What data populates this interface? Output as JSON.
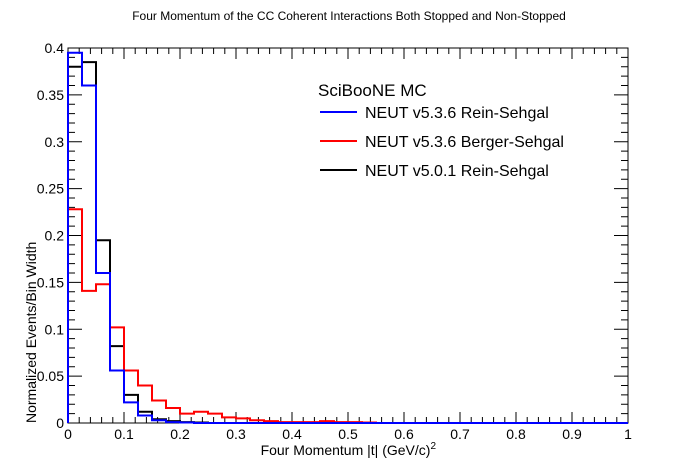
{
  "chart_data": {
    "type": "line",
    "title": "Four Momentum of the CC Coherent Interactions Both Stopped and Non-Stopped",
    "xlabel": "Four Momentum |t| (GeV/c)",
    "xlabel_sup": "2",
    "ylabel": "Normalized Events/Bin Width",
    "xlim": [
      0,
      1
    ],
    "ylim": [
      0,
      0.4
    ],
    "x_ticks": [
      0,
      0.1,
      0.2,
      0.3,
      0.4,
      0.5,
      0.6,
      0.7,
      0.8,
      0.9,
      1
    ],
    "x_tick_labels": [
      "0",
      "0.1",
      "0.2",
      "0.3",
      "0.4",
      "0.5",
      "0.6",
      "0.7",
      "0.8",
      "0.9",
      "1"
    ],
    "y_ticks": [
      0,
      0.05,
      0.1,
      0.15,
      0.2,
      0.25,
      0.3,
      0.35,
      0.4
    ],
    "y_tick_labels": [
      "0",
      "0.05",
      "0.1",
      "0.15",
      "0.2",
      "0.25",
      "0.3",
      "0.35",
      "0.4"
    ],
    "grid": false,
    "legend_position": "top-right",
    "legend_title": "SciBooNE MC",
    "bin_edges": [
      0,
      0.025,
      0.05,
      0.075,
      0.1,
      0.125,
      0.15,
      0.175,
      0.2,
      0.225,
      0.25,
      0.275,
      0.3,
      0.325,
      0.35,
      0.375,
      0.4,
      0.425,
      0.45,
      0.475,
      0.5,
      0.525,
      0.55,
      0.575,
      0.6,
      0.625,
      0.65,
      0.675,
      0.7,
      0.725,
      0.75,
      0.775,
      0.8,
      0.825,
      0.85,
      0.875,
      0.9,
      0.925,
      0.95,
      0.975,
      1
    ],
    "series": [
      {
        "name": "NEUT v5.3.6 Rein-Sehgal",
        "color": "#0000ff",
        "values": [
          0.395,
          0.36,
          0.16,
          0.056,
          0.022,
          0.008,
          0.003,
          0.001,
          0.0005,
          0,
          0,
          0,
          0,
          0,
          0,
          0,
          0,
          0,
          0,
          0,
          0,
          0,
          0,
          0,
          0,
          0,
          0,
          0,
          0,
          0,
          0,
          0,
          0,
          0,
          0,
          0,
          0,
          0,
          0,
          0
        ]
      },
      {
        "name": "NEUT v5.3.6 Berger-Sehgal",
        "color": "#ff0000",
        "values": [
          0.228,
          0.141,
          0.148,
          0.102,
          0.056,
          0.04,
          0.024,
          0.016,
          0.01,
          0.012,
          0.01,
          0.006,
          0.005,
          0.003,
          0.002,
          0.001,
          0.001,
          0.001,
          0.002,
          0.001,
          0.001,
          0.0005,
          0,
          0,
          0,
          0,
          0,
          0,
          0,
          0,
          0,
          0,
          0,
          0,
          0,
          0,
          0,
          0,
          0,
          0
        ]
      },
      {
        "name": "NEUT v5.0.1 Rein-Sehgal",
        "color": "#000000",
        "values": [
          0.38,
          0.385,
          0.195,
          0.082,
          0.03,
          0.012,
          0.004,
          0.002,
          0.001,
          0.0005,
          0,
          0,
          0,
          0,
          0,
          0,
          0,
          0,
          0,
          0,
          0,
          0,
          0,
          0,
          0,
          0,
          0,
          0,
          0,
          0,
          0,
          0,
          0,
          0,
          0,
          0,
          0,
          0,
          0,
          0
        ]
      }
    ]
  }
}
